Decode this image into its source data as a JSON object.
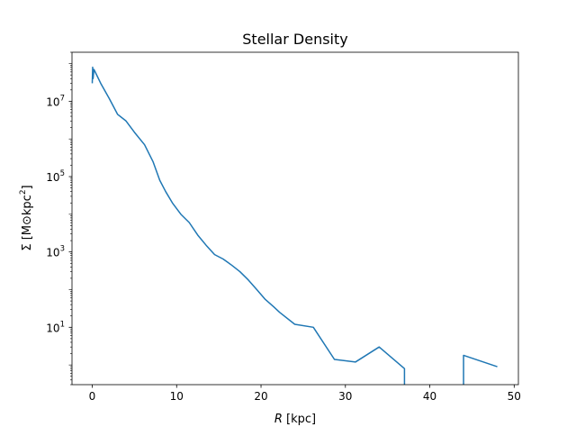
{
  "chart_data": {
    "type": "line",
    "title": "Stellar Density",
    "xlabel": "R [kpc]",
    "xlabel_var": "R",
    "xlabel_unit": " [kpc]",
    "ylabel_base": "Σ [M⊙kpc",
    "ylabel_sup": "2",
    "ylabel_close": "]",
    "xscale": "linear",
    "yscale": "log",
    "xlim": [
      -2.4,
      50.5
    ],
    "ylim": [
      0.3,
      200000000
    ],
    "grid": false,
    "legend": "none",
    "xticks": [
      0,
      10,
      20,
      30,
      40,
      50
    ],
    "xtick_labels": [
      "0",
      "10",
      "20",
      "30",
      "40",
      "50"
    ],
    "yticks": [
      10,
      1000,
      100000,
      10000000
    ],
    "ytick_labels": [
      {
        "base": "10",
        "exp": "1"
      },
      {
        "base": "10",
        "exp": "3"
      },
      {
        "base": "10",
        "exp": "5"
      },
      {
        "base": "10",
        "exp": "7"
      }
    ],
    "series": [
      {
        "color": "#1f77b4",
        "segments": [
          [
            [
              0.0,
              30000000
            ],
            [
              0.05,
              80000000
            ],
            [
              0.1,
              40000000
            ],
            [
              0.2,
              70000000
            ],
            [
              0.35,
              60000000
            ],
            [
              1.0,
              30000000
            ],
            [
              2.0,
              12000000
            ],
            [
              3.0,
              4500000
            ],
            [
              4.0,
              3000000
            ],
            [
              5.0,
              1500000
            ],
            [
              6.2,
              700000
            ],
            [
              7.2,
              250000
            ],
            [
              8.0,
              80000
            ],
            [
              8.7,
              40000
            ],
            [
              9.5,
              20000
            ],
            [
              10.5,
              10000
            ],
            [
              11.5,
              6000
            ],
            [
              12.5,
              2800
            ],
            [
              13.5,
              1500
            ],
            [
              14.5,
              850
            ],
            [
              15.5,
              650
            ],
            [
              16.5,
              450
            ],
            [
              17.5,
              300
            ],
            [
              18.5,
              180
            ],
            [
              19.5,
              100
            ],
            [
              20.5,
              55
            ],
            [
              21.5,
              35
            ],
            [
              22.2,
              25
            ],
            [
              24.0,
              12
            ],
            [
              26.2,
              10
            ],
            [
              28.7,
              1.4
            ],
            [
              31.2,
              1.2
            ],
            [
              34.0,
              3.0
            ],
            [
              37.0,
              0.8
            ],
            [
              37.0,
              0.3
            ]
          ],
          [
            [
              44.0,
              0.3
            ],
            [
              44.0,
              1.8
            ],
            [
              48.0,
              0.9
            ]
          ]
        ]
      }
    ]
  }
}
